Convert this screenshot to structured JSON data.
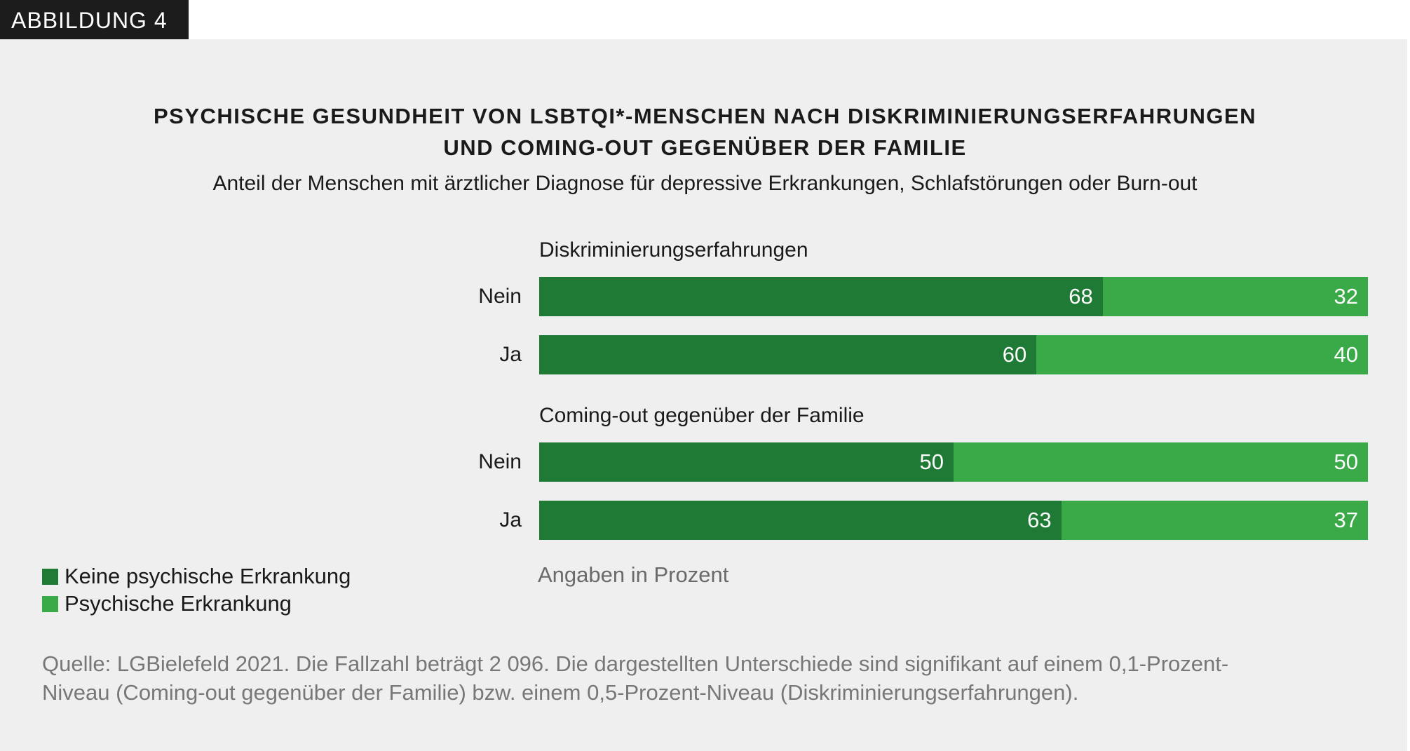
{
  "figure_tag": "ABBILDUNG 4",
  "colors": {
    "dark": "#1e7a34",
    "light": "#3aaa48",
    "background": "#efefef"
  },
  "chart_data": {
    "type": "bar",
    "orientation": "horizontal",
    "stacked": true,
    "title_line1": "PSYCHISCHE GESUNDHEIT VON LSBTQI*-MENSCHEN NACH DISKRIMINIERUNGSERFAHRUNGEN",
    "title_line2": "UND COMING-OUT GEGENÜBER DER FAMILIE",
    "subtitle": "Anteil der Menschen mit ärztlicher Diagnose für depressive Erkrankungen, Schlafstörungen oder Burn-out",
    "groups": [
      {
        "label": "Diskriminierungserfahrungen",
        "rows": [
          {
            "label": "Nein",
            "values": [
              68,
              32
            ]
          },
          {
            "label": "Ja",
            "values": [
              60,
              40
            ]
          }
        ]
      },
      {
        "label": "Coming-out gegenüber der Familie",
        "rows": [
          {
            "label": "Nein",
            "values": [
              50,
              50
            ]
          },
          {
            "label": "Ja",
            "values": [
              63,
              37
            ]
          }
        ]
      }
    ],
    "series": [
      {
        "name": "Keine psychische Erkrankung",
        "color": "#1e7a34"
      },
      {
        "name": "Psychische Erkrankung",
        "color": "#3aaa48"
      }
    ],
    "xlim": [
      0,
      100
    ],
    "legend_position": "bottom-left",
    "unit_note": "Angaben in Prozent"
  },
  "source_line1": "Quelle: LGBielefeld 2021. Die Fallzahl beträgt 2 096. Die dargestellten Unterschiede sind signifikant auf einem 0,1-Prozent-",
  "source_line2": "Niveau (Coming-out gegenüber der Familie) bzw. einem 0,5-Prozent-Niveau (Diskriminierungserfahrungen)."
}
